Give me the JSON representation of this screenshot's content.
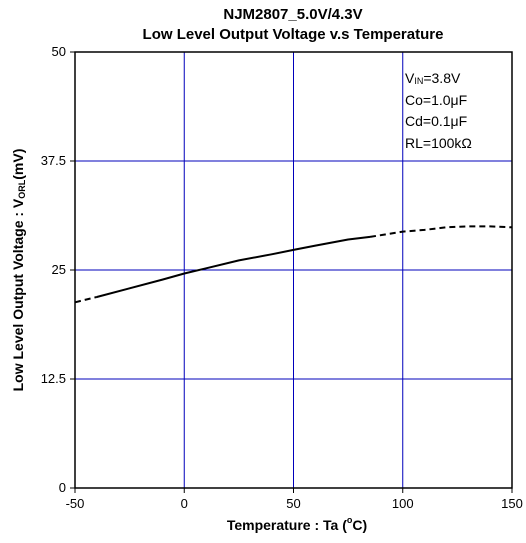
{
  "chart_data": {
    "type": "line",
    "title_line1": "NJM2807_5.0V/4.3V",
    "title_line2": "Low Level Output Voltage v.s Temperature",
    "xlabel_prefix": "Temperature : Ta (",
    "xlabel_degree": "o",
    "xlabel_suffix": "C)",
    "ylabel_prefix": "Low Level Output Voltage : V",
    "ylabel_subscript": "ORL",
    "ylabel_suffix": "(mV)",
    "xlim": [
      -50,
      150
    ],
    "ylim": [
      0,
      50
    ],
    "x_tick_values": [
      -50,
      0,
      50,
      100,
      150
    ],
    "x_ticks": [
      "-50",
      "0",
      "50",
      "100",
      "150"
    ],
    "y_tick_values": [
      0,
      12.5,
      25,
      37.5,
      50
    ],
    "y_ticks": [
      "0",
      "12.5",
      "25",
      "37.5",
      "50"
    ],
    "grid": true,
    "conditions": {
      "vin_prefix": "V",
      "vin_subscript": "IN",
      "vin_value": "=3.8V",
      "co": "Co=1.0μF",
      "cd": "Cd=0.1μF",
      "rl": "RL=100kΩ"
    },
    "series": [
      {
        "style": "dashed",
        "x": [
          -50,
          -45,
          -40
        ],
        "y": [
          21.3,
          21.6,
          21.9
        ]
      },
      {
        "style": "solid",
        "x": [
          -40,
          -25,
          -10,
          0,
          10,
          25,
          40,
          50,
          60,
          75,
          85
        ],
        "y": [
          21.9,
          22.9,
          23.9,
          24.6,
          25.2,
          26.1,
          26.8,
          27.3,
          27.8,
          28.5,
          28.8
        ]
      },
      {
        "style": "dashed",
        "x": [
          85,
          100,
          110,
          120,
          130,
          140,
          150
        ],
        "y": [
          28.8,
          29.4,
          29.6,
          29.9,
          30.0,
          30.0,
          29.9
        ]
      }
    ],
    "colors": {
      "grid": "#0000bb",
      "frame": "#000000",
      "line": "#000000"
    }
  }
}
